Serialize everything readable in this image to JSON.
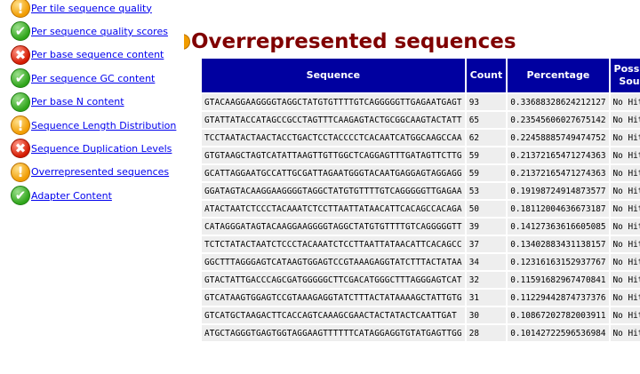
{
  "sidebar": {
    "items": [
      {
        "label": "Per tile sequence quality",
        "status": "warn",
        "icon": "warning-icon"
      },
      {
        "label": "Per sequence quality scores",
        "status": "pass",
        "icon": "pass-icon"
      },
      {
        "label": "Per base sequence content",
        "status": "fail",
        "icon": "fail-icon"
      },
      {
        "label": "Per sequence GC content",
        "status": "pass",
        "icon": "pass-icon"
      },
      {
        "label": "Per base N content",
        "status": "pass",
        "icon": "pass-icon"
      },
      {
        "label": "Sequence Length Distribution",
        "status": "warn",
        "icon": "warning-icon"
      },
      {
        "label": "Sequence Duplication Levels",
        "status": "fail",
        "icon": "fail-icon"
      },
      {
        "label": "Overrepresented sequences",
        "status": "warn",
        "icon": "warning-icon"
      },
      {
        "label": "Adapter Content",
        "status": "pass",
        "icon": "pass-icon"
      }
    ]
  },
  "module": {
    "title": "Overrepresented sequences",
    "status": "warn"
  },
  "table": {
    "headers": {
      "sequence": "Sequence",
      "count": "Count",
      "percentage": "Percentage",
      "source_line1": "Possib",
      "source_line2": "Sour"
    },
    "rows": [
      {
        "sequence": "GTACAAGGAAGGGGTAGGCTATGTGTTTTGTCAGGGGGTTGAGAATGAGT",
        "count": "93",
        "percentage": "0.33688328624212127",
        "source": "No Hit"
      },
      {
        "sequence": "GTATTATACCATAGCCGCCTAGTTTCAAGAGTACTGCGGCAAGTACTATT",
        "count": "65",
        "percentage": "0.23545606027675142",
        "source": "No Hit"
      },
      {
        "sequence": "TCCTAATACTAACTACCTGACTCCTACCCCTCACAATCATGGCAAGCCAA",
        "count": "62",
        "percentage": "0.22458885749474752",
        "source": "No Hit"
      },
      {
        "sequence": "GTGTAAGCTAGTCATATTAAGTTGTTGGCTCAGGAGTTTGATAGTTCTTG",
        "count": "59",
        "percentage": "0.21372165471274363",
        "source": "No Hit"
      },
      {
        "sequence": "GCATTAGGAATGCCATTGCGATTAGAATGGGTACAATGAGGAGTAGGAGG",
        "count": "59",
        "percentage": "0.21372165471274363",
        "source": "No Hit"
      },
      {
        "sequence": "GGATAGTACAAGGAAGGGGTAGGCTATGTGTTTTGTCAGGGGGTTGAGAA",
        "count": "53",
        "percentage": "0.19198724914873577",
        "source": "No Hit"
      },
      {
        "sequence": "ATACTAATCTCCCTACAAATCTCCTTAATTATAACATTCACAGCCACAGA",
        "count": "50",
        "percentage": "0.18112004636673187",
        "source": "No Hit"
      },
      {
        "sequence": "CATAGGGATAGTACAAGGAAGGGGTAGGCTATGTGTTTTGTCAGGGGGTT",
        "count": "39",
        "percentage": "0.14127363616605085",
        "source": "No Hit"
      },
      {
        "sequence": "TCTCTATACTAATCTCCCTACAAATCTCCTTAATTATAACATTCACAGCC",
        "count": "37",
        "percentage": "0.13402883431138157",
        "source": "No Hit"
      },
      {
        "sequence": "GGCTTTAGGGAGTCATAAGTGGAGTCCGTAAAGAGGTATCTTTACTATAA",
        "count": "34",
        "percentage": "0.12316163152937767",
        "source": "No Hit"
      },
      {
        "sequence": "GTACTATTGACCCAGCGATGGGGGCTTCGACATGGGCTTTAGGGAGTCAT",
        "count": "32",
        "percentage": "0.11591682967470841",
        "source": "No Hit"
      },
      {
        "sequence": "GTCATAAGTGGAGTCCGTAAAGAGGTATCTTTACTATAAAAGCTATTGTG",
        "count": "31",
        "percentage": "0.11229442874737376",
        "source": "No Hit"
      },
      {
        "sequence": "GTCATGCTAAGACTTCACCAGTCAAAGCGAACTACTATACTCAATTGAT",
        "count": "30",
        "percentage": "0.10867202782003911",
        "source": "No Hit"
      },
      {
        "sequence": "ATGCTAGGGTGAGTGGTAGGAAGTTTTTTCATAGGAGGTGTATGAGTTGG",
        "count": "28",
        "percentage": "0.10142722596536984",
        "source": "No Hit"
      }
    ]
  }
}
